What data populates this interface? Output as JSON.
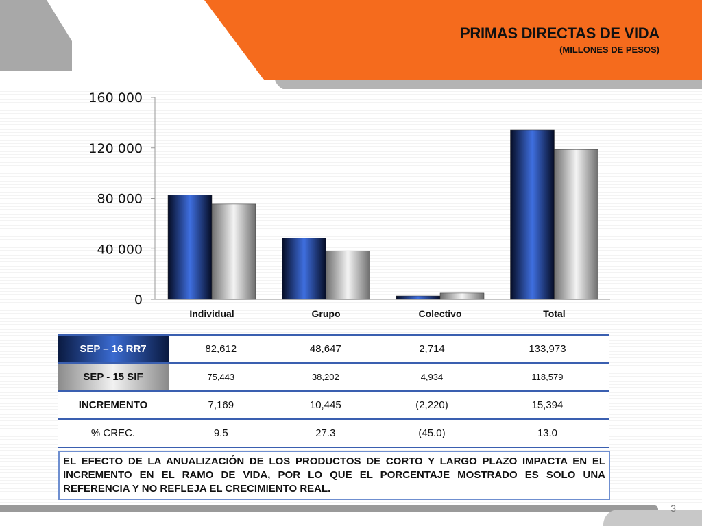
{
  "title": "PRIMAS DIRECTAS DE VIDA",
  "subtitle": "(MILLONES DE PESOS)",
  "chart_data": {
    "type": "bar",
    "categories": [
      "Individual",
      "Grupo",
      "Colectivo",
      "Total"
    ],
    "series": [
      {
        "values": [
          82612,
          48647,
          2714,
          133973
        ],
        "color": "#2f5bd0"
      },
      {
        "values": [
          75443,
          38202,
          4934,
          118579
        ],
        "color": "#d9d9d9"
      }
    ],
    "y_ticks": [
      "0",
      "40 000",
      "80 000",
      "120 000",
      "160 000"
    ],
    "ylim": [
      0,
      160000
    ],
    "xlabel": "",
    "ylabel": "",
    "grid": false
  },
  "table": {
    "rows": [
      {
        "label": "SEP – 16 RR7",
        "cells": [
          "82,612",
          "48,647",
          "2,714",
          "133,973"
        ]
      },
      {
        "label": "SEP - 15 SIF",
        "cells": [
          "75,443",
          "38,202",
          "4,934",
          "118,579"
        ]
      },
      {
        "label": "INCREMENTO",
        "cells": [
          "7,169",
          "10,445",
          "(2,220)",
          "15,394"
        ]
      },
      {
        "label": "% CREC.",
        "cells": [
          "9.5",
          "27.3",
          "(45.0)",
          "13.0"
        ]
      }
    ]
  },
  "note": "EL EFECTO DE LA ANUALIZACIÓN DE LOS PRODUCTOS DE CORTO Y LARGO PLAZO IMPACTA EN EL INCREMENTO EN EL RAMO DE VIDA, POR LO QUE EL PORCENTAJE MOSTRADO ES SOLO UNA REFERENCIA Y NO REFLEJA EL CRECIMIENTO REAL.",
  "page_number": "3"
}
